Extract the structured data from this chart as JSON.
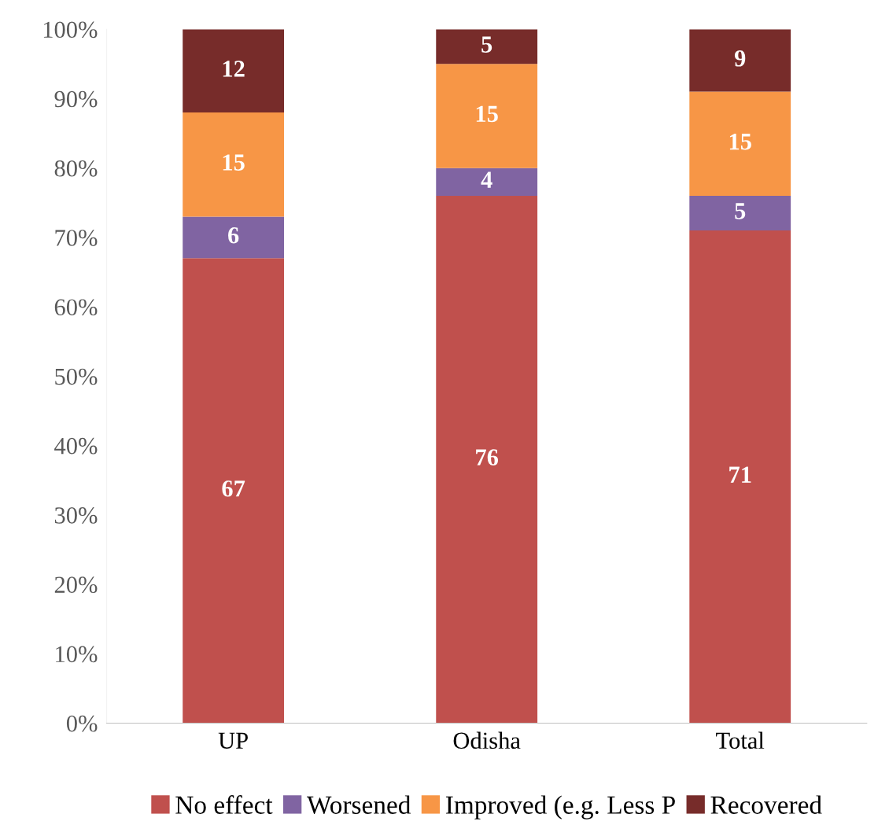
{
  "chart_data": {
    "type": "bar",
    "stacked": true,
    "data_labels": true,
    "legend": "bottom",
    "grid": false,
    "categories": [
      "UP",
      "Odisha",
      "Total"
    ],
    "ylim": [
      0,
      100
    ],
    "yticks": [
      {
        "value": 0,
        "label": "0%"
      },
      {
        "value": 10,
        "label": "10%"
      },
      {
        "value": 20,
        "label": "20%"
      },
      {
        "value": 30,
        "label": "30%"
      },
      {
        "value": 40,
        "label": "40%"
      },
      {
        "value": 50,
        "label": "50%"
      },
      {
        "value": 60,
        "label": "60%"
      },
      {
        "value": 70,
        "label": "70%"
      },
      {
        "value": 80,
        "label": "80%"
      },
      {
        "value": 90,
        "label": "90%"
      },
      {
        "value": 100,
        "label": "100%"
      }
    ],
    "series": [
      {
        "name": "No effect",
        "color": "#c0504d",
        "values": [
          67,
          76,
          71
        ]
      },
      {
        "name": "Worsened",
        "color": "#8064a2",
        "values": [
          6,
          4,
          5
        ]
      },
      {
        "name": "Improved (e.g. Less P",
        "color": "#f79646",
        "values": [
          15,
          15,
          15
        ]
      },
      {
        "name": "Recovered",
        "color": "#772c2a",
        "values": [
          12,
          5,
          9
        ]
      }
    ]
  }
}
